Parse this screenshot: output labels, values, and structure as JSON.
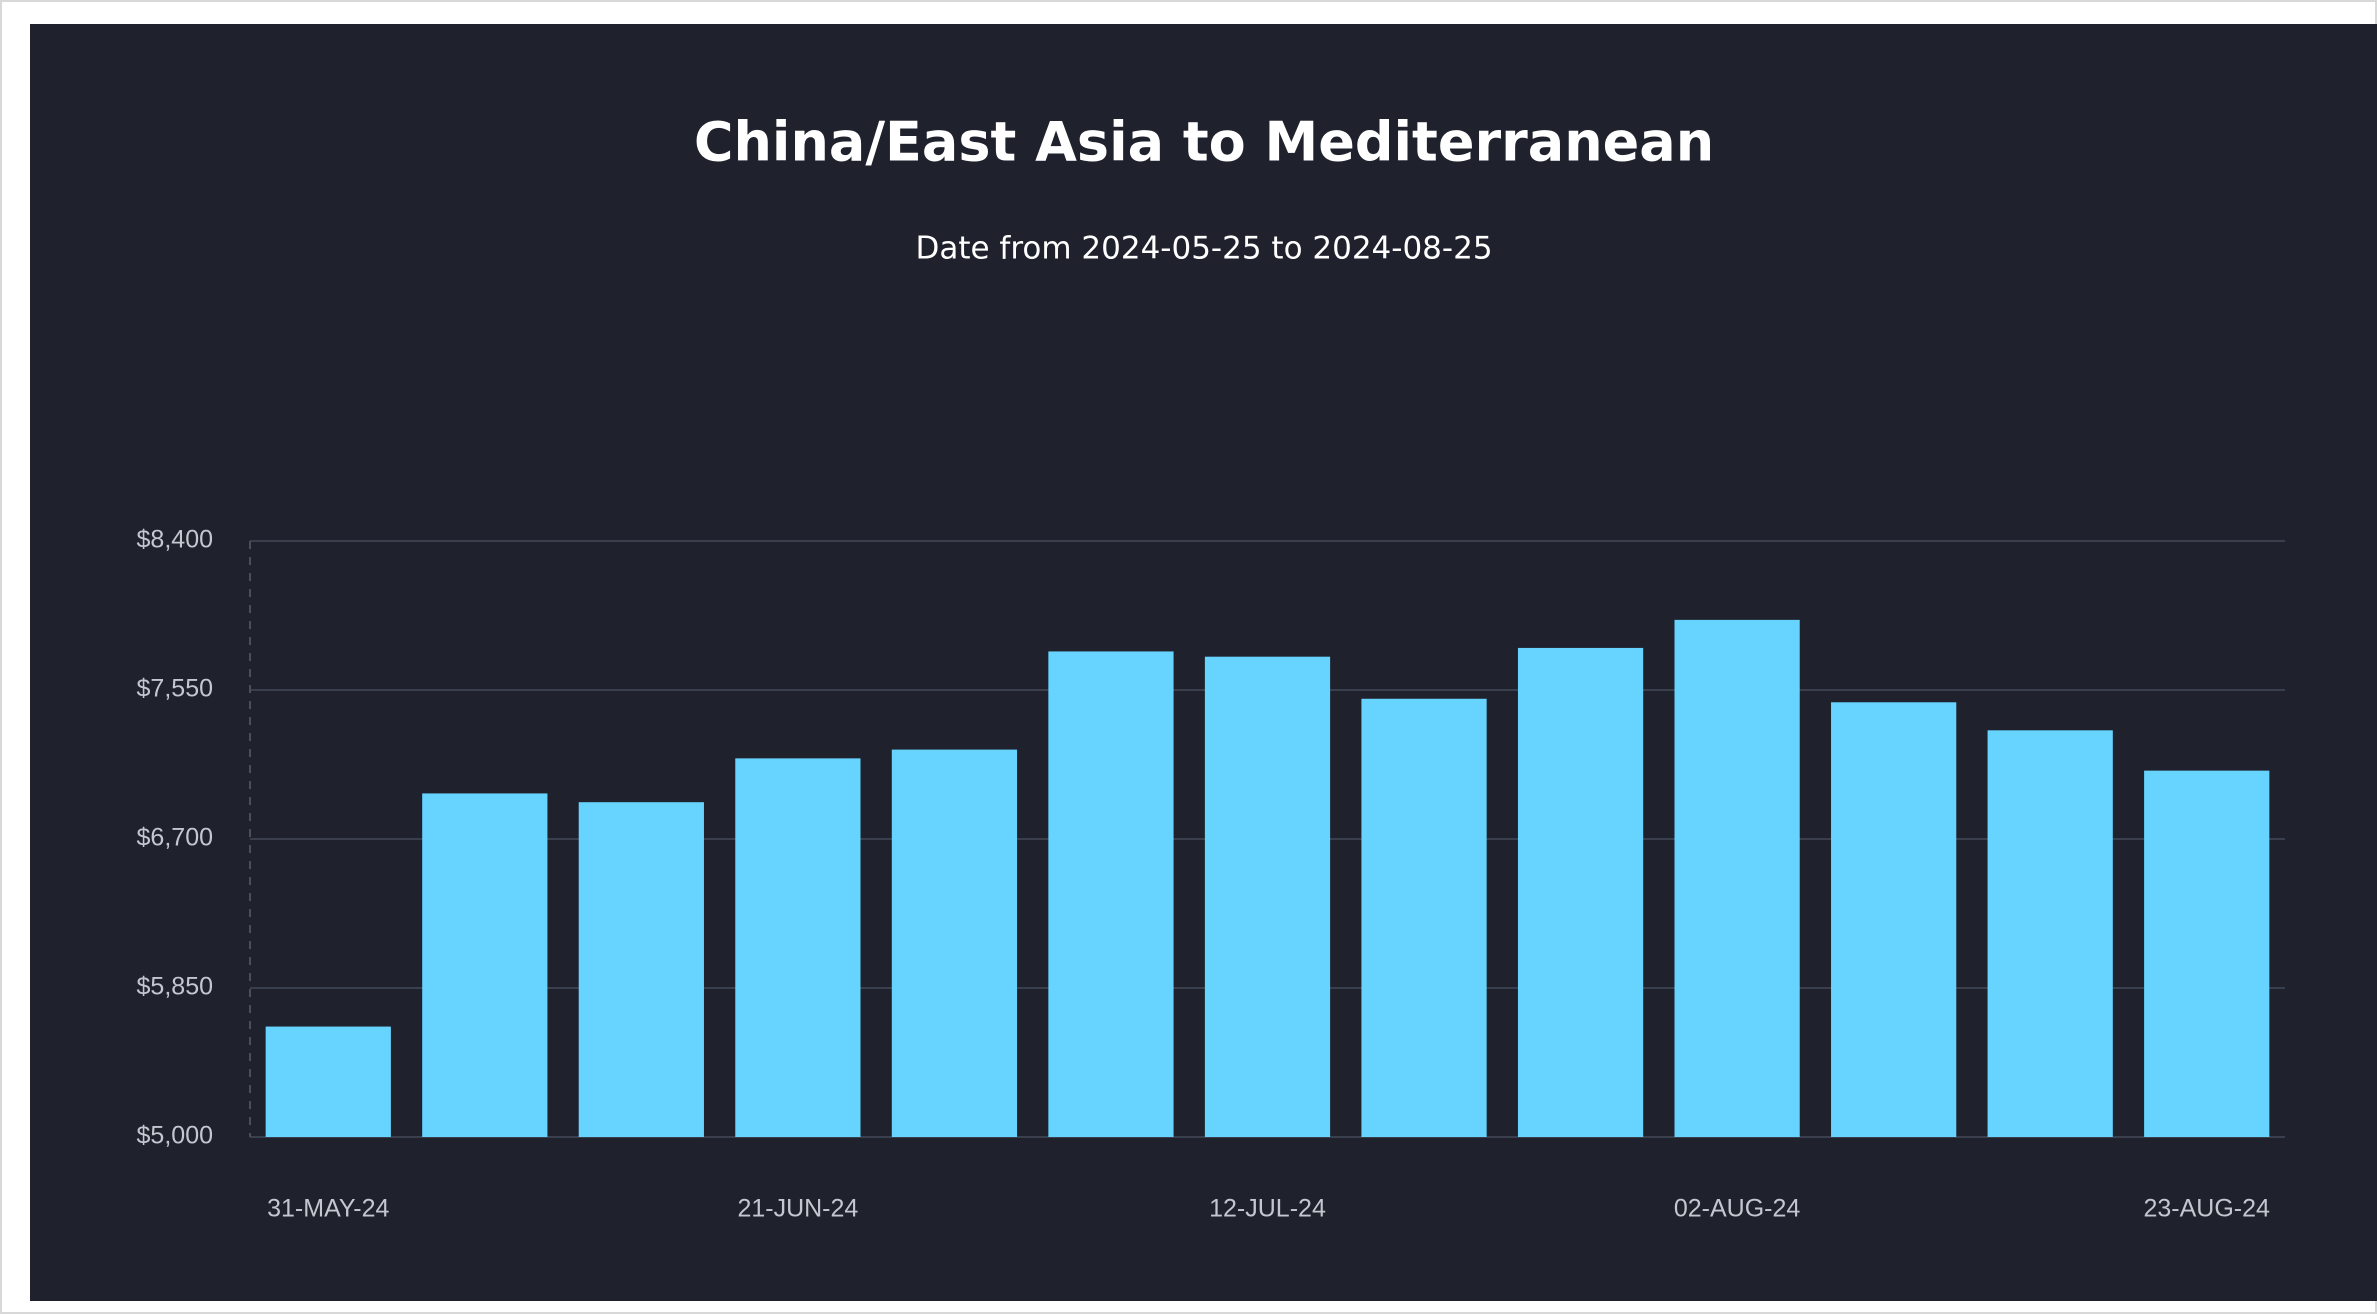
{
  "chart_data": {
    "type": "bar",
    "title": "China/East Asia to Mediterranean",
    "subtitle": "Date from 2024-05-25 to 2024-08-25",
    "categories": [
      "31-MAY-24",
      null,
      null,
      "21-JUN-24",
      null,
      null,
      "12-JUL-24",
      null,
      null,
      "02-AUG-24",
      null,
      null,
      "23-AUG-24"
    ],
    "values": [
      5630,
      6960,
      6910,
      7160,
      7210,
      7770,
      7740,
      7500,
      7790,
      7950,
      7480,
      7320,
      7090
    ],
    "color": "#66d4ff",
    "ylim": [
      5000,
      8400
    ],
    "yticks": [
      {
        "value": 5000,
        "label": "$5,000"
      },
      {
        "value": 5850,
        "label": "$5,850"
      },
      {
        "value": 6700,
        "label": "$6,700"
      },
      {
        "value": 7550,
        "label": "$7,550"
      },
      {
        "value": 8400,
        "label": "$8,400"
      }
    ],
    "grid": true
  }
}
